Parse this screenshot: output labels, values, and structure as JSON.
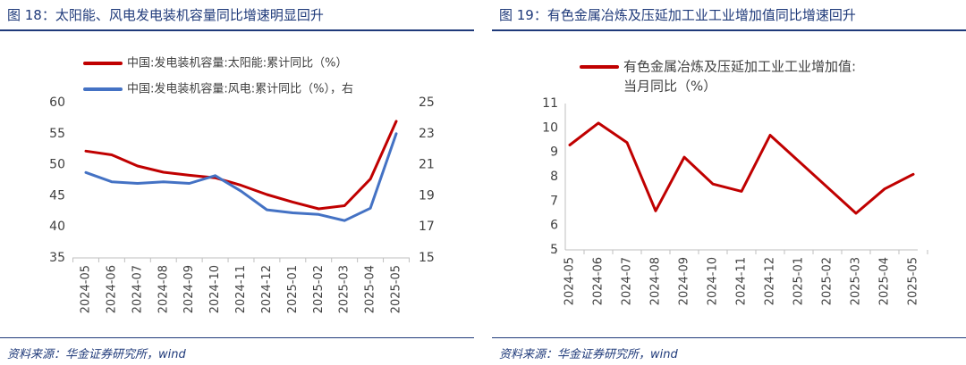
{
  "left": {
    "figure_title": "图 18：太阳能、风电发电装机容量同比增速明显回升",
    "source": "资料来源：华金证券研究所，wind"
  },
  "right": {
    "figure_title": "图 19：有色金属冶炼及压延加工业工业增加值同比增速回升",
    "source": "资料来源：华金证券研究所，wind"
  },
  "chart_data": [
    {
      "type": "line",
      "categories": [
        "2024-05",
        "2024-06",
        "2024-07",
        "2024-08",
        "2024-09",
        "2024-10",
        "2024-11",
        "2024-12",
        "2025-01",
        "2025-02",
        "2025-03",
        "2025-04",
        "2025-05"
      ],
      "series": [
        {
          "name": "中国:发电装机容量:太阳能:累计同比（%）",
          "axis": "left",
          "color": "#c00000",
          "values": [
            52.2,
            51.6,
            49.8,
            48.8,
            48.3,
            47.9,
            46.7,
            45.2,
            44.0,
            42.9,
            43.4,
            47.7,
            57.0
          ]
        },
        {
          "name": "中国:发电装机容量:风电:累计同比（%），右",
          "axis": "right",
          "color": "#4472c4",
          "values": [
            20.5,
            19.9,
            19.8,
            19.9,
            19.8,
            20.3,
            19.3,
            18.1,
            17.9,
            17.8,
            17.4,
            18.2,
            23.0
          ]
        }
      ],
      "ylim_left": [
        35,
        60
      ],
      "yticks_left": [
        35,
        40,
        45,
        50,
        55,
        60
      ],
      "ylim_right": [
        15,
        25
      ],
      "yticks_right": [
        15,
        17,
        19,
        21,
        23,
        25
      ],
      "grid": false,
      "legend": "top"
    },
    {
      "type": "line",
      "categories": [
        "2024-05",
        "2024-06",
        "2024-07",
        "2024-08",
        "2024-09",
        "2024-10",
        "2024-11",
        "2024-12",
        "2025-01",
        "2025-02",
        "2025-03",
        "2025-04",
        "2025-05"
      ],
      "series": [
        {
          "name": "有色金属冶炼及压延加工业工业增加值:当月同比（%）",
          "color": "#c00000",
          "values": [
            9.3,
            10.2,
            9.4,
            6.6,
            8.8,
            7.7,
            7.4,
            9.7,
            null,
            null,
            6.5,
            7.5,
            8.1
          ]
        }
      ],
      "ylim": [
        5,
        11
      ],
      "yticks": [
        5,
        6,
        7,
        8,
        9,
        10,
        11
      ],
      "grid": false,
      "legend": "top"
    }
  ]
}
